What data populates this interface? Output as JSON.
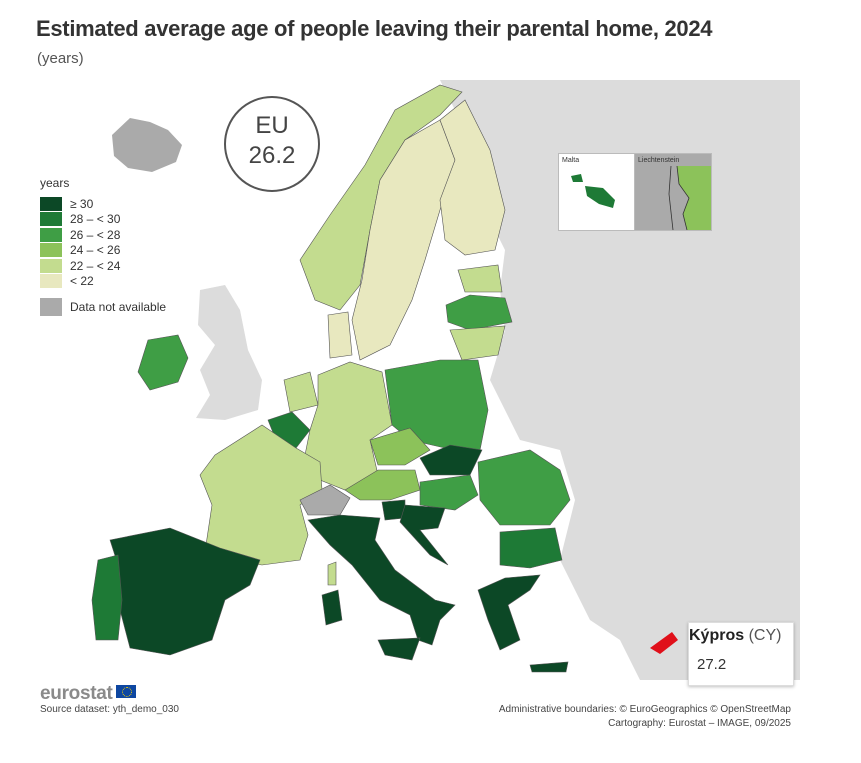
{
  "title": "Estimated average age of people leaving their parental home, 2024",
  "subtitle": "(years)",
  "eu": {
    "label": "EU",
    "value": "26.2"
  },
  "legend": {
    "title": "years",
    "classes": [
      {
        "label": "≥ 30",
        "color": "#0c4826"
      },
      {
        "label": "28 – < 30",
        "color": "#1e7a36"
      },
      {
        "label": "26 – < 28",
        "color": "#3f9e45"
      },
      {
        "label": "24 – < 26",
        "color": "#8cc25a"
      },
      {
        "label": "22 – < 24",
        "color": "#c3dc8f"
      },
      {
        "label": "< 22",
        "color": "#e8e8bf"
      }
    ],
    "na_label": "Data not available",
    "na_color": "#aaaaaa"
  },
  "insets": {
    "malta": "Malta",
    "liechtenstein": "Liechtenstein"
  },
  "tooltip": {
    "name": "Κýpros",
    "code": "(CY)",
    "value": "27.2"
  },
  "logo": "eurostat",
  "source": "Source dataset: yth_demo_030",
  "credits": {
    "line1": "Administrative boundaries: © EuroGeographics © OpenStreetMap",
    "line2": "Cartography: Eurostat – IMAGE, 09/2025"
  },
  "colors": {
    "non_eu": "#dcdcdc",
    "sea": "#ffffff",
    "cyprus_highlight": "#e0101a"
  }
}
